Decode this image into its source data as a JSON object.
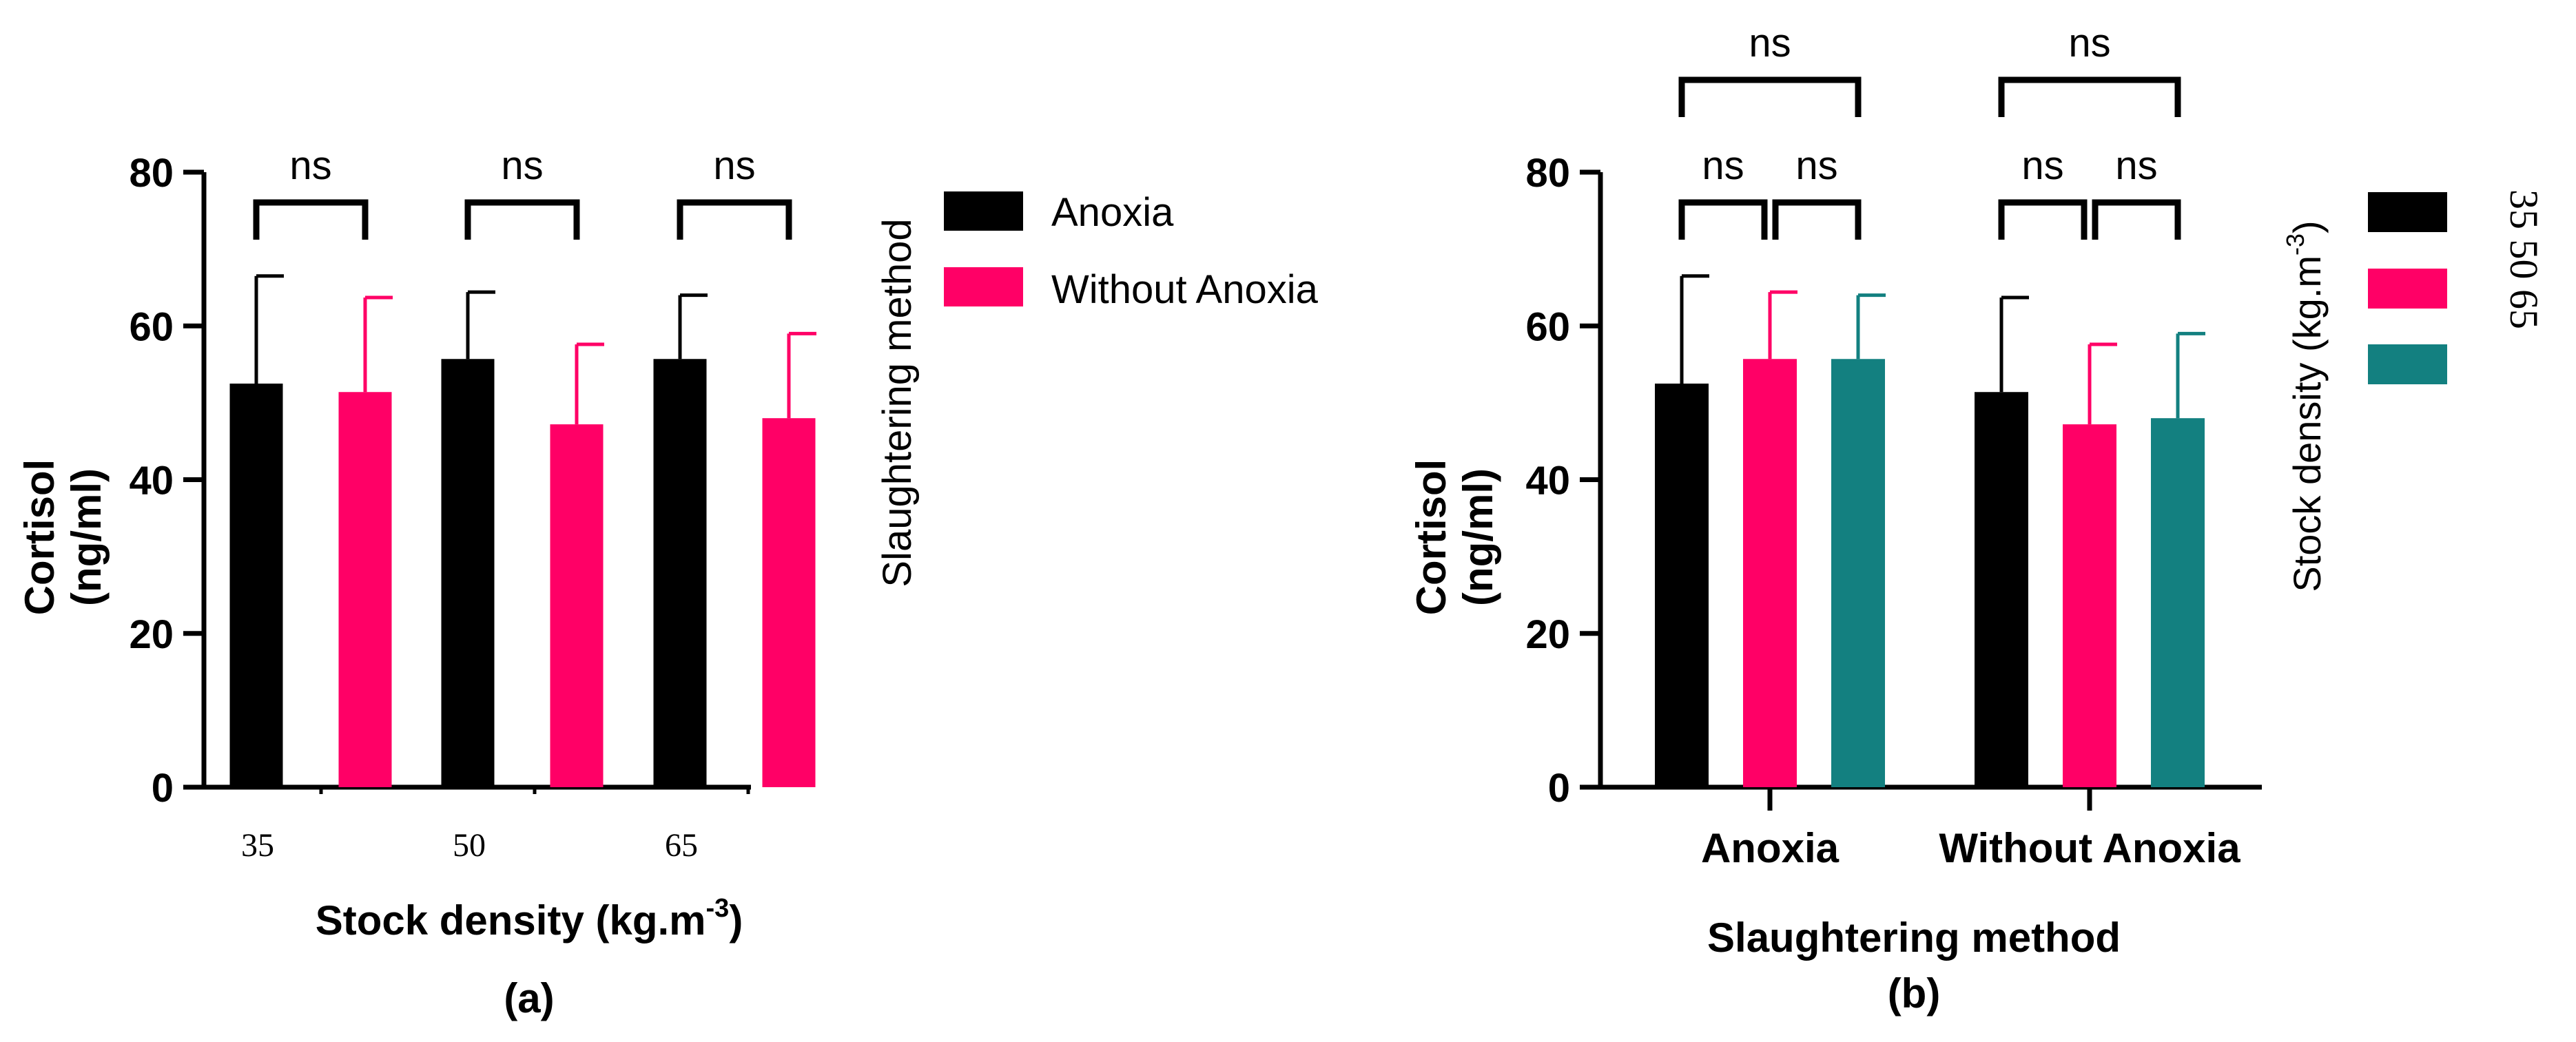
{
  "figure_labels": {
    "a": "(a)",
    "b": "(b)"
  },
  "colors": {
    "black": "#000000",
    "pink": "#FF0066",
    "teal": "#138080"
  },
  "chart_data": [
    {
      "type": "bar",
      "panel": "(a)",
      "ylabel_line1": "Cortisol",
      "ylabel_line2": "(ng/ml)",
      "xlabel": "Stock density (kg.m",
      "xlabel_sup": "-3",
      "xlabel_end": ")",
      "categories": [
        "35",
        "50",
        "65"
      ],
      "ylim": [
        0,
        80
      ],
      "yticks": [
        "0",
        "20",
        "40",
        "60",
        "80"
      ],
      "series": [
        {
          "name": "Anoxia",
          "color": "#000000",
          "values": [
            52.5,
            55.7,
            55.7
          ],
          "errors": [
            14.0,
            8.7,
            8.3
          ]
        },
        {
          "name": "Without Anoxia",
          "color": "#FF0066",
          "values": [
            51.4,
            47.2,
            48.0
          ],
          "errors": [
            12.3,
            10.4,
            11.0
          ]
        }
      ],
      "legend_title": "Slaughtering method",
      "legend_position": "right",
      "significance": [
        "ns",
        "ns",
        "ns"
      ]
    },
    {
      "type": "bar",
      "panel": "(b)",
      "ylabel_line1": "Cortisol",
      "ylabel_line2": "(ng/ml)",
      "xlabel": "Slaughtering method",
      "categories": [
        "Anoxia",
        "Without Anoxia"
      ],
      "ylim": [
        0,
        80
      ],
      "yticks": [
        "0",
        "20",
        "40",
        "60",
        "80"
      ],
      "series": [
        {
          "name": "35",
          "color": "#000000",
          "values": [
            52.5,
            51.4
          ],
          "errors": [
            14.0,
            12.3
          ]
        },
        {
          "name": "50",
          "color": "#FF0066",
          "values": [
            55.7,
            47.2
          ],
          "errors": [
            8.7,
            10.4
          ]
        },
        {
          "name": "65",
          "color": "#138080",
          "values": [
            55.7,
            48.0
          ],
          "errors": [
            8.3,
            11.0
          ]
        }
      ],
      "legend_title": "Stock density (kg.m",
      "legend_title_sup": "-3",
      "legend_title_end": ")",
      "legend_labels": "35 50 65",
      "legend_position": "right",
      "significance_pairs": [
        "ns",
        "ns"
      ],
      "significance_outer": [
        "ns",
        "ns"
      ]
    }
  ]
}
